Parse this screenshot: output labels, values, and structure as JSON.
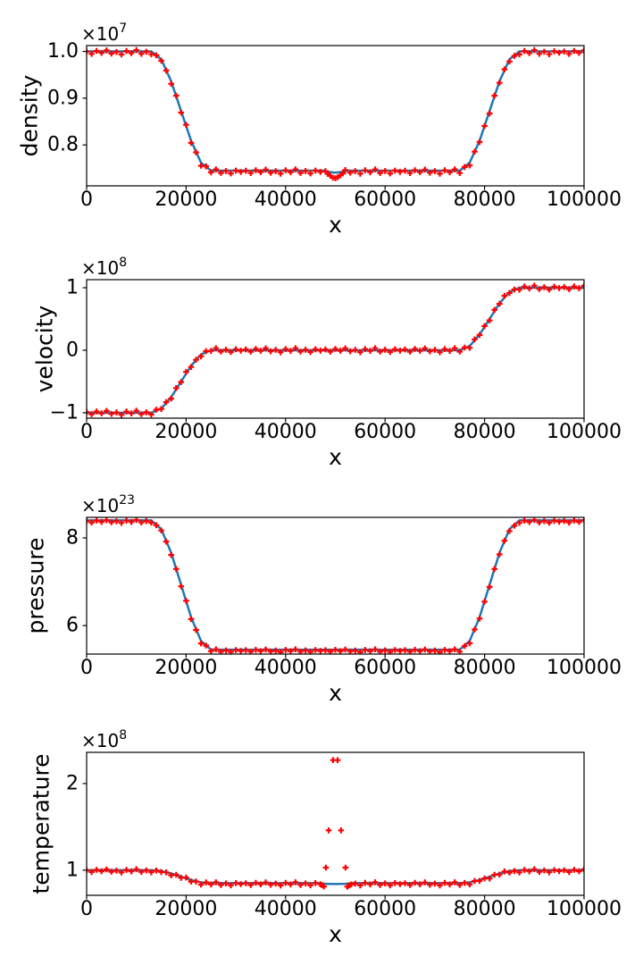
{
  "figure": {
    "background": "#ffffff"
  },
  "style": {
    "line_color": "#1f77b4",
    "marker_color": "#ff0000",
    "axis_color": "#000000"
  },
  "marker_noise_cycle": [
    0.35,
    -0.65,
    0.6,
    -0.25,
    0.85,
    -0.5,
    0.15,
    -0.9,
    0.55,
    -0.3,
    0.95,
    -0.6,
    0.25,
    -0.8,
    0.45,
    -0.15
  ],
  "chart_data": [
    {
      "id": "density",
      "type": "line+scatter",
      "xlabel": "x",
      "ylabel": "density",
      "offset_text": "×10",
      "offset_exponent": "7",
      "xlim": [
        0,
        100000
      ],
      "ylim": [
        0.7125,
        1.0125
      ],
      "xticks": {
        "values": [
          0,
          20000,
          40000,
          60000,
          80000,
          100000
        ],
        "labels": [
          "0",
          "20000",
          "40000",
          "60000",
          "80000",
          "100000"
        ]
      },
      "yticks": {
        "values": [
          1.0,
          0.9,
          0.8
        ],
        "labels": [
          "1.0",
          "0.9",
          "0.8"
        ]
      },
      "line_points": [
        [
          0,
          1.0
        ],
        [
          13000,
          1.0
        ],
        [
          15000,
          0.983
        ],
        [
          17000,
          0.936
        ],
        [
          19000,
          0.8725
        ],
        [
          21000,
          0.809
        ],
        [
          23000,
          0.762
        ],
        [
          25000,
          0.745
        ],
        [
          47500,
          0.745
        ],
        [
          49000,
          0.742
        ],
        [
          50000,
          0.7405
        ],
        [
          51000,
          0.742
        ],
        [
          52500,
          0.745
        ],
        [
          75000,
          0.745
        ],
        [
          77000,
          0.762
        ],
        [
          79000,
          0.809
        ],
        [
          81000,
          0.8725
        ],
        [
          83000,
          0.936
        ],
        [
          85000,
          0.983
        ],
        [
          87000,
          1.0
        ],
        [
          100000,
          1.0
        ]
      ],
      "markers": {
        "x_step": 1000,
        "x_max": 100000,
        "bias": -0.002,
        "amp": 0.005,
        "gaps": [
          [
            48400,
            51600
          ]
        ],
        "extra": [
          [
            48500,
            0.738
          ],
          [
            49000,
            0.734
          ],
          [
            49500,
            0.73
          ],
          [
            50000,
            0.729
          ],
          [
            50500,
            0.731
          ],
          [
            51000,
            0.735
          ],
          [
            51500,
            0.739
          ]
        ]
      }
    },
    {
      "id": "velocity",
      "type": "line+scatter",
      "xlabel": "x",
      "ylabel": "velocity",
      "offset_text": "×10",
      "offset_exponent": "8",
      "xlim": [
        0,
        100000
      ],
      "ylim": [
        -1.086,
        1.129
      ],
      "xticks": {
        "values": [
          0,
          20000,
          40000,
          60000,
          80000,
          100000
        ],
        "labels": [
          "0",
          "20000",
          "40000",
          "60000",
          "80000",
          "100000"
        ]
      },
      "yticks": {
        "values": [
          1,
          0,
          -1
        ],
        "labels": [
          "1",
          "0",
          "−1"
        ]
      },
      "line_points": [
        [
          0,
          -1
        ],
        [
          13000,
          -1
        ],
        [
          15000,
          -0.933
        ],
        [
          17000,
          -0.75
        ],
        [
          19000,
          -0.5
        ],
        [
          21000,
          -0.25
        ],
        [
          23000,
          -0.067
        ],
        [
          25000,
          0
        ],
        [
          75000,
          0
        ],
        [
          77000,
          0.067
        ],
        [
          79000,
          0.25
        ],
        [
          81000,
          0.5
        ],
        [
          83000,
          0.75
        ],
        [
          85000,
          0.933
        ],
        [
          87000,
          1
        ],
        [
          100000,
          1
        ]
      ],
      "markers": {
        "x_step": 1000,
        "x_max": 100000,
        "bias": 0,
        "amp": 0.035,
        "gaps": [],
        "extra": []
      }
    },
    {
      "id": "pressure",
      "type": "line+scatter",
      "xlabel": "x",
      "ylabel": "pressure",
      "offset_text": "×10",
      "offset_exponent": "23",
      "xlim": [
        0,
        100000
      ],
      "ylim": [
        5.35,
        8.47
      ],
      "xticks": {
        "values": [
          0,
          20000,
          40000,
          60000,
          80000,
          100000
        ],
        "labels": [
          "0",
          "20000",
          "40000",
          "60000",
          "80000",
          "100000"
        ]
      },
      "yticks": {
        "values": [
          8,
          6
        ],
        "labels": [
          "8",
          "6"
        ]
      },
      "line_points": [
        [
          0,
          8.4
        ],
        [
          13000,
          8.4
        ],
        [
          15000,
          8.2
        ],
        [
          17000,
          7.66
        ],
        [
          19000,
          6.93
        ],
        [
          21000,
          6.19
        ],
        [
          23000,
          5.65
        ],
        [
          25000,
          5.45
        ],
        [
          75000,
          5.45
        ],
        [
          77000,
          5.65
        ],
        [
          79000,
          6.19
        ],
        [
          81000,
          6.93
        ],
        [
          83000,
          7.66
        ],
        [
          85000,
          8.2
        ],
        [
          87000,
          8.4
        ],
        [
          100000,
          8.4
        ]
      ],
      "markers": {
        "x_step": 1000,
        "x_max": 100000,
        "bias": -0.025,
        "amp": 0.035,
        "gaps": [],
        "extra": []
      }
    },
    {
      "id": "temperature",
      "type": "line+scatter",
      "xlabel": "x",
      "ylabel": "temperature",
      "offset_text": "×10",
      "offset_exponent": "8",
      "xlim": [
        0,
        100000
      ],
      "ylim": [
        0.71,
        2.36
      ],
      "xticks": {
        "values": [
          0,
          20000,
          40000,
          60000,
          80000,
          100000
        ],
        "labels": [
          "0",
          "20000",
          "40000",
          "60000",
          "80000",
          "100000"
        ]
      },
      "yticks": {
        "values": [
          2,
          1
        ],
        "labels": [
          "2",
          "1"
        ]
      },
      "line_points": [
        [
          0,
          1.0
        ],
        [
          13000,
          1.0
        ],
        [
          15000,
          0.99
        ],
        [
          17000,
          0.962
        ],
        [
          19000,
          0.925
        ],
        [
          21000,
          0.887
        ],
        [
          23000,
          0.86
        ],
        [
          25000,
          0.85
        ],
        [
          46500,
          0.85
        ],
        [
          48000,
          0.843
        ],
        [
          50000,
          0.84
        ],
        [
          52000,
          0.843
        ],
        [
          53500,
          0.85
        ],
        [
          75000,
          0.85
        ],
        [
          77000,
          0.86
        ],
        [
          79000,
          0.887
        ],
        [
          81000,
          0.925
        ],
        [
          83000,
          0.962
        ],
        [
          85000,
          0.99
        ],
        [
          87000,
          1.0
        ],
        [
          100000,
          1.0
        ]
      ],
      "markers": {
        "x_step": 1000,
        "x_max": 100000,
        "bias": -0.008,
        "amp": 0.02,
        "gaps": [
          [
            47200,
            53400
          ]
        ],
        "extra": [
          [
            47300,
            0.828
          ],
          [
            47700,
            0.812
          ],
          [
            48100,
            1.03
          ],
          [
            48650,
            1.46
          ],
          [
            49550,
            2.27
          ],
          [
            50450,
            2.27
          ],
          [
            51150,
            1.46
          ],
          [
            52050,
            1.03
          ],
          [
            52400,
            0.81
          ],
          [
            52800,
            0.824
          ],
          [
            53200,
            0.835
          ]
        ]
      }
    }
  ]
}
